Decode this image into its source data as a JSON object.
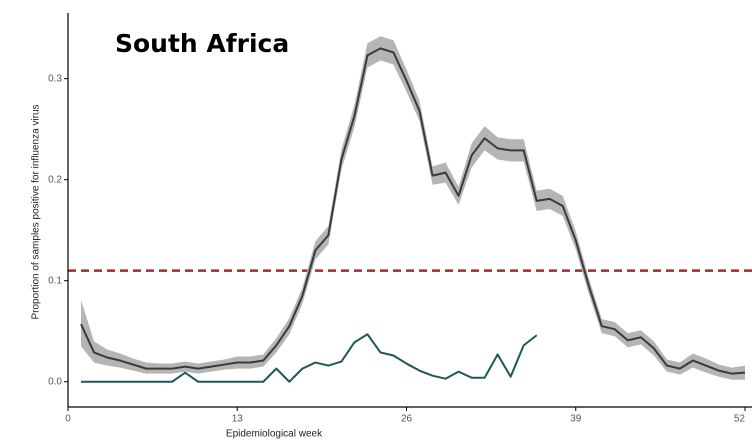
{
  "chart_data": {
    "type": "line",
    "title": "South Africa",
    "x_label": "Epidemiological week",
    "y_label": "Proportion of samples positive for influenza virus",
    "x": [
      1,
      2,
      3,
      4,
      5,
      6,
      7,
      8,
      9,
      10,
      11,
      12,
      13,
      14,
      15,
      16,
      17,
      18,
      19,
      20,
      21,
      22,
      23,
      24,
      25,
      26,
      27,
      28,
      29,
      30,
      31,
      32,
      33,
      34,
      35,
      36,
      37,
      38,
      39,
      40,
      41,
      42,
      43,
      44,
      45,
      46,
      47,
      48,
      49,
      50,
      51,
      52
    ],
    "series": [
      {
        "color": "#3a3a3a",
        "band_color": "#b5b5b5",
        "values": [
          0.057,
          0.029,
          0.024,
          0.021,
          0.017,
          0.013,
          0.013,
          0.013,
          0.015,
          0.013,
          0.015,
          0.017,
          0.019,
          0.019,
          0.021,
          0.036,
          0.055,
          0.085,
          0.13,
          0.145,
          0.22,
          0.263,
          0.323,
          0.33,
          0.326,
          0.298,
          0.268,
          0.204,
          0.207,
          0.184,
          0.224,
          0.241,
          0.231,
          0.229,
          0.229,
          0.179,
          0.181,
          0.174,
          0.14,
          0.095,
          0.055,
          0.052,
          0.041,
          0.044,
          0.033,
          0.016,
          0.013,
          0.021,
          0.016,
          0.011,
          0.008,
          0.009
        ],
        "lower": [
          0.035,
          0.019,
          0.016,
          0.014,
          0.011,
          0.008,
          0.008,
          0.008,
          0.01,
          0.008,
          0.01,
          0.012,
          0.013,
          0.013,
          0.015,
          0.029,
          0.047,
          0.077,
          0.121,
          0.136,
          0.21,
          0.252,
          0.311,
          0.318,
          0.314,
          0.287,
          0.258,
          0.195,
          0.197,
          0.175,
          0.212,
          0.229,
          0.22,
          0.218,
          0.218,
          0.169,
          0.171,
          0.164,
          0.131,
          0.087,
          0.048,
          0.045,
          0.034,
          0.037,
          0.026,
          0.01,
          0.007,
          0.014,
          0.009,
          0.005,
          0.002,
          0.002
        ],
        "upper": [
          0.081,
          0.04,
          0.032,
          0.028,
          0.023,
          0.019,
          0.018,
          0.018,
          0.02,
          0.018,
          0.02,
          0.022,
          0.025,
          0.025,
          0.027,
          0.043,
          0.063,
          0.093,
          0.139,
          0.154,
          0.23,
          0.274,
          0.335,
          0.342,
          0.338,
          0.309,
          0.278,
          0.213,
          0.217,
          0.193,
          0.236,
          0.253,
          0.242,
          0.24,
          0.24,
          0.189,
          0.191,
          0.184,
          0.149,
          0.103,
          0.062,
          0.059,
          0.048,
          0.051,
          0.04,
          0.022,
          0.019,
          0.028,
          0.023,
          0.017,
          0.014,
          0.016
        ]
      },
      {
        "color": "#1f5858",
        "values": [
          0,
          0,
          0,
          0,
          0,
          0,
          0,
          0,
          0.009,
          0,
          0,
          0,
          0,
          0,
          0,
          0.013,
          0,
          0.013,
          0.019,
          0.016,
          0.02,
          0.039,
          0.047,
          0.029,
          0.026,
          0.018,
          0.011,
          0.006,
          0.003,
          0.01,
          0.004,
          0.004,
          0.027,
          0.005,
          0.036,
          0.046,
          null,
          null,
          null,
          null,
          null,
          null,
          null,
          null,
          null,
          null,
          null,
          null,
          null,
          null,
          null,
          null
        ]
      }
    ],
    "threshold": {
      "value": 0.11,
      "color": "#a52a2a"
    },
    "xlim": [
      0,
      52
    ],
    "xticks": [
      0,
      13,
      26,
      39,
      52
    ],
    "ylim": [
      -0.025,
      0.365
    ],
    "yticks": [
      {
        "value": 0,
        "label": "0.0"
      },
      0.1,
      0.2,
      0.3
    ],
    "grid": false
  }
}
